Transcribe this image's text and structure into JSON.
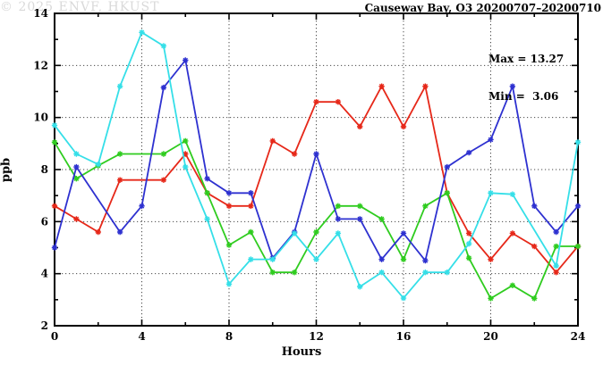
{
  "title": "Causeway Bay, O3 20200707–20200710",
  "annotation": {
    "max_label": "Max = 13.27",
    "min_label": "Min =  3.06"
  },
  "watermark": "© 2025 ENVF, HKUST",
  "axes": {
    "xlabel": "Hours",
    "ylabel": "ppb"
  },
  "chart_data": {
    "type": "line",
    "title": "Causeway Bay, O3 20200707–20200710",
    "xlabel": "Hours",
    "ylabel": "ppb",
    "xlim": [
      0,
      24
    ],
    "ylim": [
      2,
      14
    ],
    "x_major_ticks": [
      0,
      4,
      8,
      12,
      16,
      20,
      24
    ],
    "x_minor_ticks": [
      2,
      6,
      10,
      14,
      18,
      22
    ],
    "y_major_ticks": [
      2,
      4,
      6,
      8,
      10,
      12,
      14
    ],
    "y_minor_ticks": [
      3,
      5,
      7,
      9,
      11,
      13
    ],
    "grid_x": [
      4,
      8,
      12,
      16,
      20
    ],
    "grid_y": [
      4,
      6,
      8,
      10,
      12
    ],
    "legend_position": "none",
    "max": 13.27,
    "min": 3.06,
    "x": [
      0,
      1,
      2,
      3,
      4,
      5,
      6,
      7,
      8,
      9,
      10,
      11,
      12,
      13,
      14,
      15,
      16,
      17,
      18,
      19,
      20,
      21,
      22,
      23,
      24
    ],
    "series": [
      {
        "name": "series-red",
        "color": "#e62819",
        "values": [
          6.6,
          6.1,
          5.6,
          7.6,
          null,
          7.6,
          8.6,
          7.1,
          6.6,
          6.6,
          9.1,
          8.6,
          10.6,
          10.6,
          9.65,
          11.2,
          9.65,
          11.2,
          7.1,
          5.55,
          4.55,
          5.55,
          5.05,
          4.05,
          5.05
        ]
      },
      {
        "name": "series-green",
        "color": "#2fcc1f",
        "values": [
          9.05,
          7.65,
          8.15,
          8.6,
          null,
          8.6,
          9.1,
          7.1,
          5.1,
          5.6,
          4.05,
          4.05,
          5.6,
          6.6,
          6.6,
          6.1,
          4.55,
          6.6,
          7.1,
          4.6,
          3.05,
          3.55,
          3.05,
          5.05,
          5.05
        ]
      },
      {
        "name": "series-blue",
        "color": "#2e31d0",
        "values": [
          5.0,
          8.1,
          null,
          5.6,
          6.6,
          11.15,
          12.2,
          7.65,
          7.1,
          7.1,
          4.6,
          5.6,
          8.6,
          6.1,
          6.1,
          4.55,
          5.55,
          4.5,
          8.1,
          8.65,
          9.15,
          11.2,
          6.6,
          5.6,
          6.6
        ]
      },
      {
        "name": "series-cyan",
        "color": "#35dfe8",
        "values": [
          9.7,
          8.6,
          8.2,
          11.2,
          13.27,
          12.75,
          8.1,
          6.1,
          3.6,
          4.55,
          4.55,
          5.55,
          4.55,
          5.55,
          3.5,
          4.05,
          3.06,
          4.05,
          4.05,
          5.15,
          7.1,
          7.05,
          null,
          4.3,
          9.05
        ]
      }
    ]
  }
}
